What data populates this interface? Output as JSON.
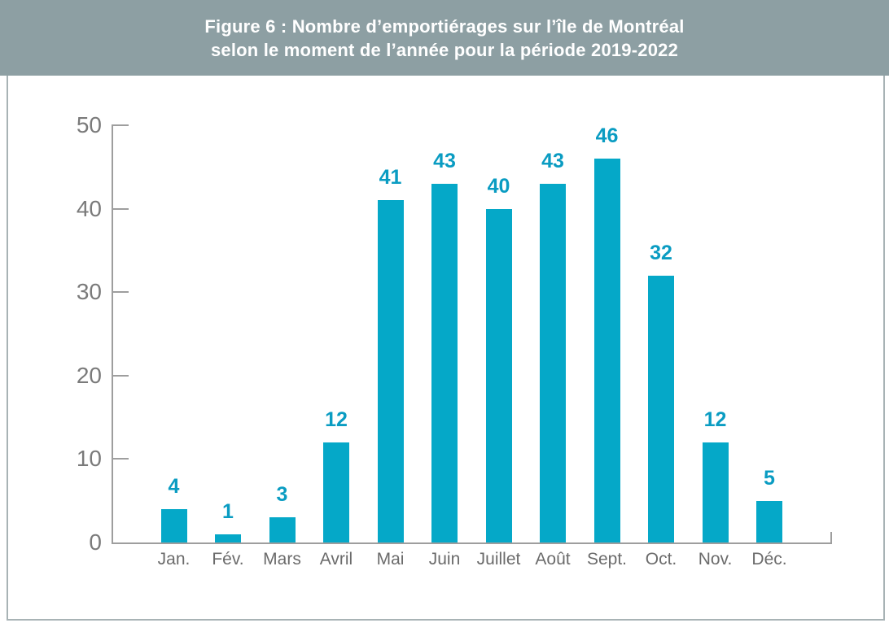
{
  "figure": {
    "title_line1": "Figure 6 : Nombre d’emportiérages sur l’île de Montréal",
    "title_line2": "selon le moment de l’année pour la période 2019-2022"
  },
  "chart_data": {
    "type": "bar",
    "title": "Figure 6 : Nombre d’emportiérages sur l’île de Montréal selon le moment de l’année pour la période 2019-2022",
    "categories": [
      "Jan.",
      "Fév.",
      "Mars",
      "Avril",
      "Mai",
      "Juin",
      "Juillet",
      "Août",
      "Sept.",
      "Oct.",
      "Nov.",
      "Déc."
    ],
    "values": [
      4,
      1,
      3,
      12,
      41,
      43,
      40,
      43,
      46,
      32,
      12,
      5
    ],
    "xlabel": "",
    "ylabel": "",
    "ylim": [
      0,
      50
    ],
    "yticks": [
      0,
      10,
      20,
      30,
      40,
      50
    ],
    "grid": false,
    "legend": "none",
    "value_labels_shown": true
  },
  "colors": {
    "header_bg": "#8d9fa3",
    "title_text": "#ffffff",
    "bar": "#05a8c8",
    "value_label": "#0a9cc2",
    "axis": "#9e9e9e",
    "y_tick_label": "#7a7a7a",
    "x_tick_label": "#6b6b6b",
    "border": "#a8b3b5",
    "background": "#ffffff"
  }
}
